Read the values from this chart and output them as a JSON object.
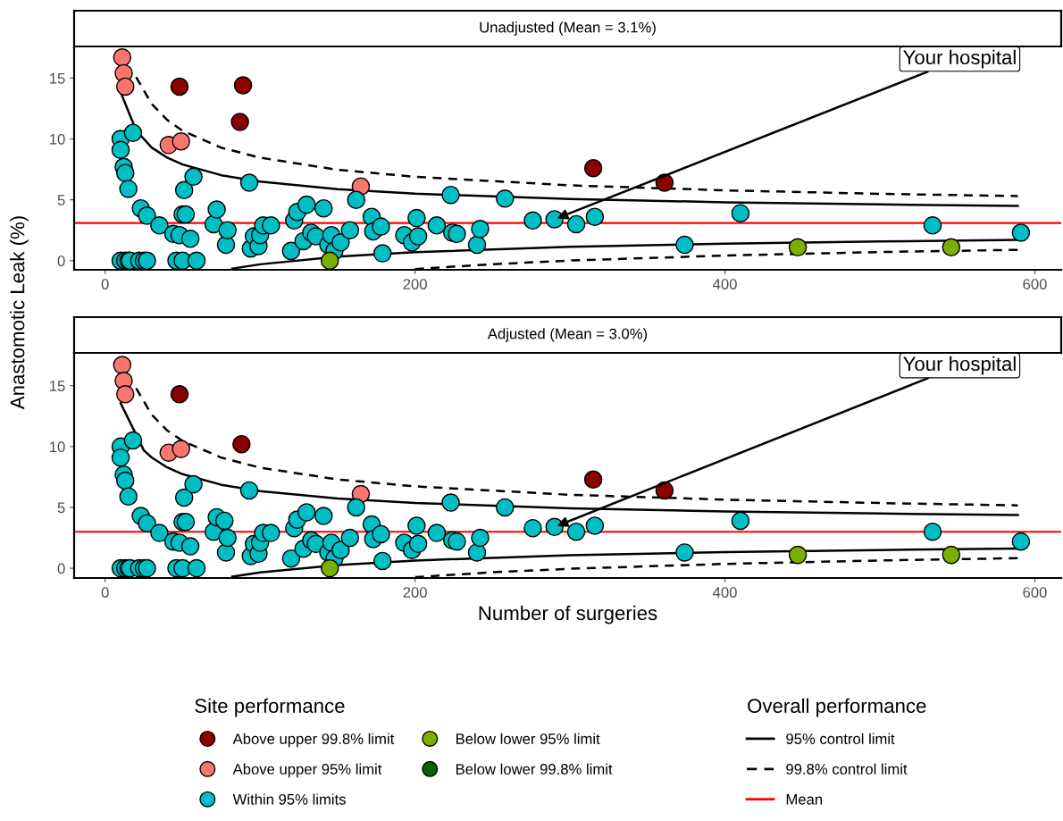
{
  "chart_data": [
    {
      "type": "scatter",
      "title": "Unadjusted (Mean = 3.1%)",
      "ylabel": "Anastomotic Leak (%)",
      "legend_title": "Site performance",
      "legend": "bottom left",
      "marker": "circle",
      "grid": false,
      "xlim": [
        -20,
        617
      ],
      "xticks": [
        0,
        200,
        400,
        600
      ],
      "ylim": [
        -0.75,
        17.6
      ],
      "yticks": [
        0,
        5,
        10,
        15
      ],
      "annotations": [
        {
          "text": "Your hospital",
          "x": 290,
          "y": 3.4
        }
      ],
      "ref_lines": [
        {
          "axis": "y",
          "value": 3.1,
          "color": "#ff0000"
        }
      ],
      "series": [
        {
          "name": "Above upper 99.8% limit",
          "color": "#8b0000",
          "x": [
            48,
            89,
            87,
            315,
            361
          ],
          "values": [
            14.3,
            14.4,
            11.4,
            7.6,
            6.4
          ]
        },
        {
          "name": "Above upper 95% limit",
          "color": "#f8766d",
          "x": [
            11,
            12,
            13,
            41,
            49,
            165
          ],
          "values": [
            16.7,
            15.4,
            14.3,
            9.5,
            9.8,
            6.1
          ]
        },
        {
          "name": "Within 95% limits",
          "color": "#00bfc4",
          "x": [
            10,
            10,
            12,
            13,
            15,
            18,
            23,
            27,
            35,
            44,
            48,
            55,
            50,
            52,
            51,
            57,
            70,
            72,
            78,
            79,
            93,
            94,
            96,
            99,
            100,
            102,
            107,
            120,
            122,
            124,
            128,
            130,
            133,
            136,
            141,
            144,
            146,
            148,
            152,
            158,
            162,
            172,
            173,
            178,
            179,
            193,
            198,
            201,
            202,
            214,
            223,
            224,
            227,
            240,
            242,
            258,
            276,
            290,
            304,
            316,
            374,
            410,
            534,
            591,
            10,
            13,
            15,
            16,
            22,
            25,
            27,
            46,
            50,
            59
          ],
          "values": [
            10.0,
            9.1,
            7.7,
            7.2,
            5.9,
            10.5,
            4.3,
            3.7,
            2.9,
            2.2,
            2.1,
            1.8,
            3.8,
            3.8,
            5.8,
            6.9,
            3.0,
            4.2,
            1.3,
            2.5,
            6.4,
            1.0,
            2.0,
            1.2,
            2.1,
            2.9,
            2.9,
            0.8,
            3.3,
            4.0,
            1.6,
            4.6,
            2.3,
            2.0,
            4.3,
            1.3,
            2.1,
            0.8,
            1.5,
            2.5,
            5.0,
            3.6,
            2.4,
            2.8,
            0.6,
            2.1,
            1.5,
            3.5,
            2.0,
            2.9,
            5.4,
            2.3,
            2.2,
            1.3,
            2.6,
            5.1,
            3.3,
            3.4,
            3.0,
            3.6,
            1.3,
            3.9,
            2.9,
            2.3,
            0,
            0,
            0,
            0,
            0,
            0,
            0,
            0,
            0,
            0
          ]
        },
        {
          "name": "Below lower 95% limit",
          "color": "#7cae00",
          "x": [
            145,
            447,
            546
          ],
          "values": [
            0,
            1.1,
            1.1
          ]
        },
        {
          "name": "Below lower 99.8% limit",
          "color": "#006400"
        },
        {
          "type": "line",
          "marker": "none",
          "line_style": "solid",
          "color": "#000000",
          "x": [
            10,
            20,
            30,
            40,
            50,
            75,
            100,
            150,
            200,
            300,
            400,
            500,
            589
          ],
          "values": [
            13.84,
            10.7,
            9.3,
            8.47,
            7.9,
            7.02,
            6.5,
            5.87,
            5.5,
            5.06,
            4.8,
            4.62,
            4.5
          ]
        },
        {
          "type": "line",
          "marker": "none",
          "line_style": "dashed",
          "color": "#000000",
          "x": [
            20,
            30,
            40,
            50,
            75,
            100,
            150,
            200,
            300,
            400,
            500,
            589
          ],
          "values": [
            15.08,
            12.88,
            11.57,
            10.67,
            9.28,
            8.46,
            7.47,
            6.89,
            6.19,
            5.78,
            5.49,
            5.31
          ]
        },
        {
          "type": "line",
          "marker": "none",
          "line_style": "solid",
          "color": "#000000",
          "x": [
            82,
            100,
            150,
            200,
            300,
            400,
            500,
            589
          ],
          "values": [
            -0.65,
            -0.3,
            0.33,
            0.7,
            1.14,
            1.4,
            1.58,
            1.7
          ]
        },
        {
          "type": "line",
          "marker": "none",
          "line_style": "dashed",
          "color": "#000000",
          "x": [
            200,
            250,
            300,
            400,
            500,
            589
          ],
          "values": [
            -0.69,
            -0.29,
            0.01,
            0.42,
            0.71,
            0.89
          ]
        }
      ]
    },
    {
      "type": "scatter",
      "title": "Adjusted (Mean = 3.0%)",
      "xlabel": "Number of surgeries",
      "legend_title": "Overall performance",
      "legend": "bottom right",
      "marker": "circle",
      "grid": false,
      "xlim": [
        -20,
        617
      ],
      "xticks": [
        0,
        200,
        400,
        600
      ],
      "ylim": [
        -0.8,
        17.7
      ],
      "yticks": [
        0,
        5,
        10,
        15
      ],
      "annotations": [
        {
          "text": "Your hospital",
          "x": 290,
          "y": 3.4
        }
      ],
      "ref_lines": [
        {
          "axis": "y",
          "value": 3.0,
          "color": "#ff0000",
          "label": "Mean"
        }
      ],
      "series": [
        {
          "color": "#8b0000",
          "x": [
            48,
            88,
            315,
            361
          ],
          "values": [
            14.3,
            10.2,
            7.3,
            6.4
          ]
        },
        {
          "color": "#f8766d",
          "x": [
            11,
            12,
            13,
            41,
            49,
            165
          ],
          "values": [
            16.7,
            15.4,
            14.3,
            9.5,
            9.8,
            6.1
          ]
        },
        {
          "color": "#00bfc4",
          "x": [
            10,
            10,
            12,
            13,
            15,
            18,
            23,
            27,
            35,
            44,
            48,
            55,
            50,
            52,
            51,
            57,
            70,
            72,
            77,
            78,
            79,
            93,
            94,
            96,
            99,
            100,
            102,
            107,
            120,
            122,
            124,
            128,
            130,
            133,
            136,
            141,
            144,
            146,
            148,
            152,
            158,
            162,
            172,
            173,
            178,
            179,
            193,
            198,
            201,
            202,
            214,
            223,
            224,
            227,
            240,
            242,
            258,
            276,
            290,
            304,
            316,
            374,
            410,
            534,
            591,
            10,
            13,
            15,
            16,
            22,
            25,
            27,
            46,
            50,
            59
          ],
          "values": [
            10.0,
            9.1,
            7.7,
            7.2,
            5.9,
            10.5,
            4.3,
            3.7,
            2.9,
            2.2,
            2.1,
            1.8,
            3.8,
            3.8,
            5.8,
            6.9,
            3.0,
            4.2,
            3.9,
            1.3,
            2.5,
            6.4,
            1.0,
            2.0,
            1.2,
            2.1,
            2.9,
            2.9,
            0.8,
            3.3,
            4.0,
            1.6,
            4.6,
            2.3,
            2.0,
            4.3,
            1.3,
            2.1,
            0.8,
            1.5,
            2.5,
            5.0,
            3.6,
            2.4,
            2.8,
            0.6,
            2.1,
            1.5,
            3.5,
            2.0,
            2.9,
            5.4,
            2.3,
            2.2,
            1.3,
            2.5,
            5.0,
            3.3,
            3.4,
            3.0,
            3.5,
            1.3,
            3.9,
            3.0,
            2.2,
            0,
            0,
            0,
            0,
            0,
            0,
            0,
            0,
            0,
            0
          ]
        },
        {
          "color": "#7cae00",
          "x": [
            145,
            447,
            546
          ],
          "values": [
            0,
            1.1,
            1.1
          ]
        },
        {
          "name": "95% control limit",
          "type": "line",
          "marker": "none",
          "line_style": "solid",
          "color": "#000000",
          "x": [
            10,
            25,
            30,
            40,
            50,
            75,
            100,
            150,
            200,
            300,
            400,
            500,
            589
          ],
          "values": [
            13.57,
            9.69,
            9.11,
            8.29,
            7.73,
            6.86,
            6.34,
            5.73,
            5.36,
            4.93,
            4.67,
            4.5,
            4.38
          ]
        },
        {
          "name": "99.8% control limit",
          "type": "line",
          "marker": "none",
          "line_style": "dashed",
          "color": "#000000",
          "x": [
            20,
            30,
            40,
            50,
            75,
            100,
            150,
            200,
            300,
            400,
            500,
            589
          ],
          "values": [
            14.79,
            12.63,
            11.33,
            10.46,
            9.09,
            8.27,
            7.3,
            6.73,
            6.04,
            5.64,
            5.36,
            5.17
          ]
        },
        {
          "type": "line",
          "marker": "none",
          "line_style": "solid",
          "color": "#000000",
          "x": [
            82,
            100,
            150,
            200,
            300,
            400,
            500,
            589
          ],
          "values": [
            -0.69,
            -0.34,
            0.27,
            0.64,
            1.07,
            1.33,
            1.5,
            1.62
          ]
        },
        {
          "type": "line",
          "marker": "none",
          "line_style": "dashed",
          "color": "#000000",
          "x": [
            200,
            250,
            300,
            400,
            500,
            589
          ],
          "values": [
            -0.73,
            -0.33,
            -0.04,
            0.36,
            0.64,
            0.83
          ]
        }
      ]
    }
  ]
}
